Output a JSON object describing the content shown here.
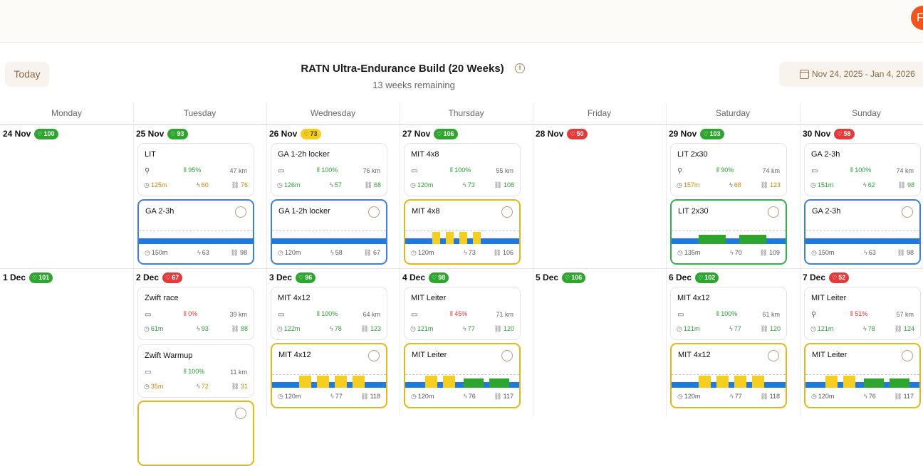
{
  "header": {
    "avatar_initial": "F"
  },
  "toolbar": {
    "today_label": "Today",
    "date_range": "Nov 24, 2025 - Jan 4, 2026"
  },
  "plan": {
    "title": "RATN Ultra-Endurance Build (20 Weeks)",
    "subtitle": "13 weeks remaining",
    "info_icon": "i"
  },
  "weekdays": [
    "Monday",
    "Tuesday",
    "Wednesday",
    "Thursday",
    "Friday",
    "Saturday",
    "Sunday"
  ],
  "colors": {
    "blue": "#1f7ae0",
    "yellow": "#f4cf22",
    "green": "#2ea52e",
    "red": "#e23b3b"
  },
  "weeks": [
    {
      "days": [
        {
          "date": "24 Nov",
          "form": "100",
          "form_color": "green"
        },
        {
          "date": "25 Nov",
          "form": "93",
          "form_color": "green",
          "activity": {
            "title": "LIT",
            "icon": "bike-icon",
            "compliance": "95%",
            "compliance_level": "good",
            "distance": "47 km",
            "duration": "125m",
            "load": "60",
            "tss": "76",
            "stats_color": "orange"
          },
          "planned": {
            "title": "GA 2-3h",
            "color": "blue",
            "duration": "150m",
            "load": "63",
            "tss": "98",
            "profile": []
          }
        },
        {
          "date": "26 Nov",
          "form": "73",
          "form_color": "yellow",
          "activity": {
            "title": "GA 1-2h locker",
            "icon": "monitor-icon",
            "compliance": "100%",
            "compliance_level": "good",
            "distance": "76 km",
            "duration": "126m",
            "load": "57",
            "tss": "68",
            "stats_color": "green"
          },
          "planned": {
            "title": "GA 1-2h locker",
            "color": "blue",
            "duration": "120m",
            "load": "58",
            "tss": "67",
            "profile": []
          }
        },
        {
          "date": "27 Nov",
          "form": "106",
          "form_color": "green",
          "activity": {
            "title": "MIT 4x8",
            "icon": "monitor-icon",
            "compliance": "100%",
            "compliance_level": "good",
            "distance": "55 km",
            "duration": "120m",
            "load": "73",
            "tss": "108",
            "stats_color": "green"
          },
          "planned": {
            "title": "MIT 4x8",
            "color": "yellow",
            "duration": "120m",
            "load": "73",
            "tss": "106",
            "profile": [
              "y4",
              "y4",
              "y4",
              "y4"
            ]
          }
        },
        {
          "date": "28 Nov",
          "form": "50",
          "form_color": "red"
        },
        {
          "date": "29 Nov",
          "form": "103",
          "form_color": "green",
          "activity": {
            "title": "LIT 2x30",
            "icon": "bike-icon",
            "compliance": "90%",
            "compliance_level": "good",
            "distance": "74 km",
            "duration": "157m",
            "load": "68",
            "tss": "123",
            "stats_color": "orange"
          },
          "planned": {
            "title": "LIT 2x30",
            "color": "green",
            "duration": "135m",
            "load": "70",
            "tss": "109",
            "profile": [
              "g2",
              "g2"
            ]
          }
        },
        {
          "date": "30 Nov",
          "form": "58",
          "form_color": "red",
          "activity": {
            "title": "GA 2-3h",
            "icon": "monitor-icon",
            "compliance": "100%",
            "compliance_level": "good",
            "distance": "74 km",
            "duration": "151m",
            "load": "62",
            "tss": "98",
            "stats_color": "green"
          },
          "planned": {
            "title": "GA 2-3h",
            "color": "blue",
            "duration": "150m",
            "load": "63",
            "tss": "98",
            "profile": []
          }
        }
      ]
    },
    {
      "days": [
        {
          "date": "1 Dec",
          "form": "101",
          "form_color": "green"
        },
        {
          "date": "2 Dec",
          "form": "67",
          "form_color": "red",
          "activity": {
            "title": "Zwift race",
            "icon": "monitor-icon",
            "compliance": "0%",
            "compliance_level": "bad",
            "distance": "39 km",
            "duration": "61m",
            "load": "93",
            "tss": "88",
            "stats_color": "green"
          },
          "activity2": {
            "title": "Zwift Warmup",
            "icon": "monitor-icon",
            "compliance": "100%",
            "compliance_level": "good",
            "distance": "11 km",
            "duration": "35m",
            "load": "72",
            "tss": "31",
            "stats_color": "orange"
          }
        },
        {
          "date": "3 Dec",
          "form": "96",
          "form_color": "green",
          "activity": {
            "title": "MIT 4x12",
            "icon": "monitor-icon",
            "compliance": "100%",
            "compliance_level": "good",
            "distance": "64 km",
            "duration": "122m",
            "load": "78",
            "tss": "123",
            "stats_color": "green"
          },
          "planned": {
            "title": "MIT 4x12",
            "color": "yellow",
            "duration": "120m",
            "load": "77",
            "tss": "118",
            "profile": [
              "y4",
              "y4",
              "y4",
              "y4"
            ]
          }
        },
        {
          "date": "4 Dec",
          "form": "98",
          "form_color": "green",
          "activity": {
            "title": "MIT Leiter",
            "icon": "monitor-icon",
            "compliance": "45%",
            "compliance_level": "bad",
            "distance": "71 km",
            "duration": "121m",
            "load": "77",
            "tss": "120",
            "stats_color": "green"
          },
          "planned": {
            "title": "MIT Leiter",
            "color": "yellow",
            "duration": "120m",
            "load": "76",
            "tss": "117",
            "profile": [
              "y4",
              "y4",
              "g3",
              "g3"
            ]
          }
        },
        {
          "date": "5 Dec",
          "form": "106",
          "form_color": "green"
        },
        {
          "date": "6 Dec",
          "form": "102",
          "form_color": "green",
          "activity": {
            "title": "MIT 4x12",
            "icon": "monitor-icon",
            "compliance": "100%",
            "compliance_level": "good",
            "distance": "61 km",
            "duration": "121m",
            "load": "77",
            "tss": "120",
            "stats_color": "green"
          },
          "planned": {
            "title": "MIT 4x12",
            "color": "yellow",
            "duration": "120m",
            "load": "77",
            "tss": "118",
            "profile": [
              "y4",
              "y4",
              "y4",
              "y4"
            ]
          }
        },
        {
          "date": "7 Dec",
          "form": "52",
          "form_color": "red",
          "activity": {
            "title": "MIT Leiter",
            "icon": "bike-icon",
            "compliance": "51%",
            "compliance_level": "bad",
            "distance": "57 km",
            "duration": "121m",
            "load": "78",
            "tss": "124",
            "stats_color": "green"
          },
          "planned": {
            "title": "MIT Leiter",
            "color": "yellow",
            "duration": "120m",
            "load": "76",
            "tss": "117",
            "profile": [
              "y4",
              "y4",
              "g3",
              "g3"
            ]
          }
        }
      ]
    }
  ]
}
